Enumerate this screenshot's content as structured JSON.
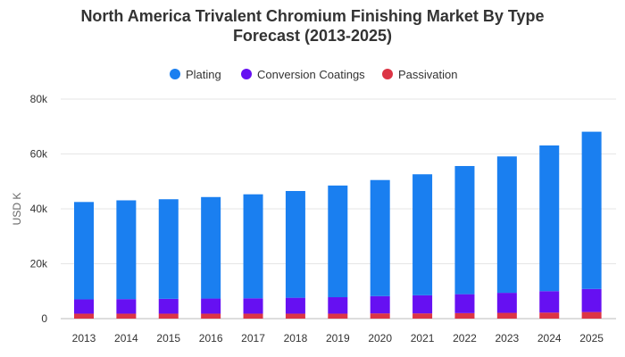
{
  "chart_data": {
    "type": "bar",
    "stacked": true,
    "title_line1": "North America Trivalent Chromium Finishing Market By Type",
    "title_line2": "Forecast (2013-2025)",
    "xlabel": "",
    "ylabel": "USD K",
    "categories": [
      "2013",
      "2014",
      "2015",
      "2016",
      "2017",
      "2018",
      "2019",
      "2020",
      "2021",
      "2022",
      "2023",
      "2024",
      "2025"
    ],
    "ylim": [
      0,
      80000
    ],
    "yticks": [
      {
        "value": 0,
        "label": "0"
      },
      {
        "value": 20000,
        "label": "20k"
      },
      {
        "value": 40000,
        "label": "40k"
      },
      {
        "value": 60000,
        "label": "60k"
      },
      {
        "value": 80000,
        "label": "80k"
      }
    ],
    "grid": true,
    "legend_position": "top",
    "series": [
      {
        "name": "Passivation",
        "color": "#dc3545",
        "values": [
          1800,
          1800,
          1800,
          1800,
          1800,
          1800,
          1800,
          1900,
          1900,
          2000,
          2100,
          2200,
          2400
        ]
      },
      {
        "name": "Conversion Coatings",
        "color": "#6610f2",
        "values": [
          5200,
          5300,
          5400,
          5500,
          5600,
          5800,
          6000,
          6300,
          6600,
          6900,
          7300,
          7800,
          8400
        ]
      },
      {
        "name": "Plating",
        "color": "#1a7ff0",
        "values": [
          35500,
          36000,
          36300,
          37000,
          37900,
          38900,
          40700,
          42300,
          44100,
          46700,
          49700,
          53100,
          57300
        ]
      }
    ],
    "legend_order": [
      "Plating",
      "Conversion Coatings",
      "Passivation"
    ]
  }
}
